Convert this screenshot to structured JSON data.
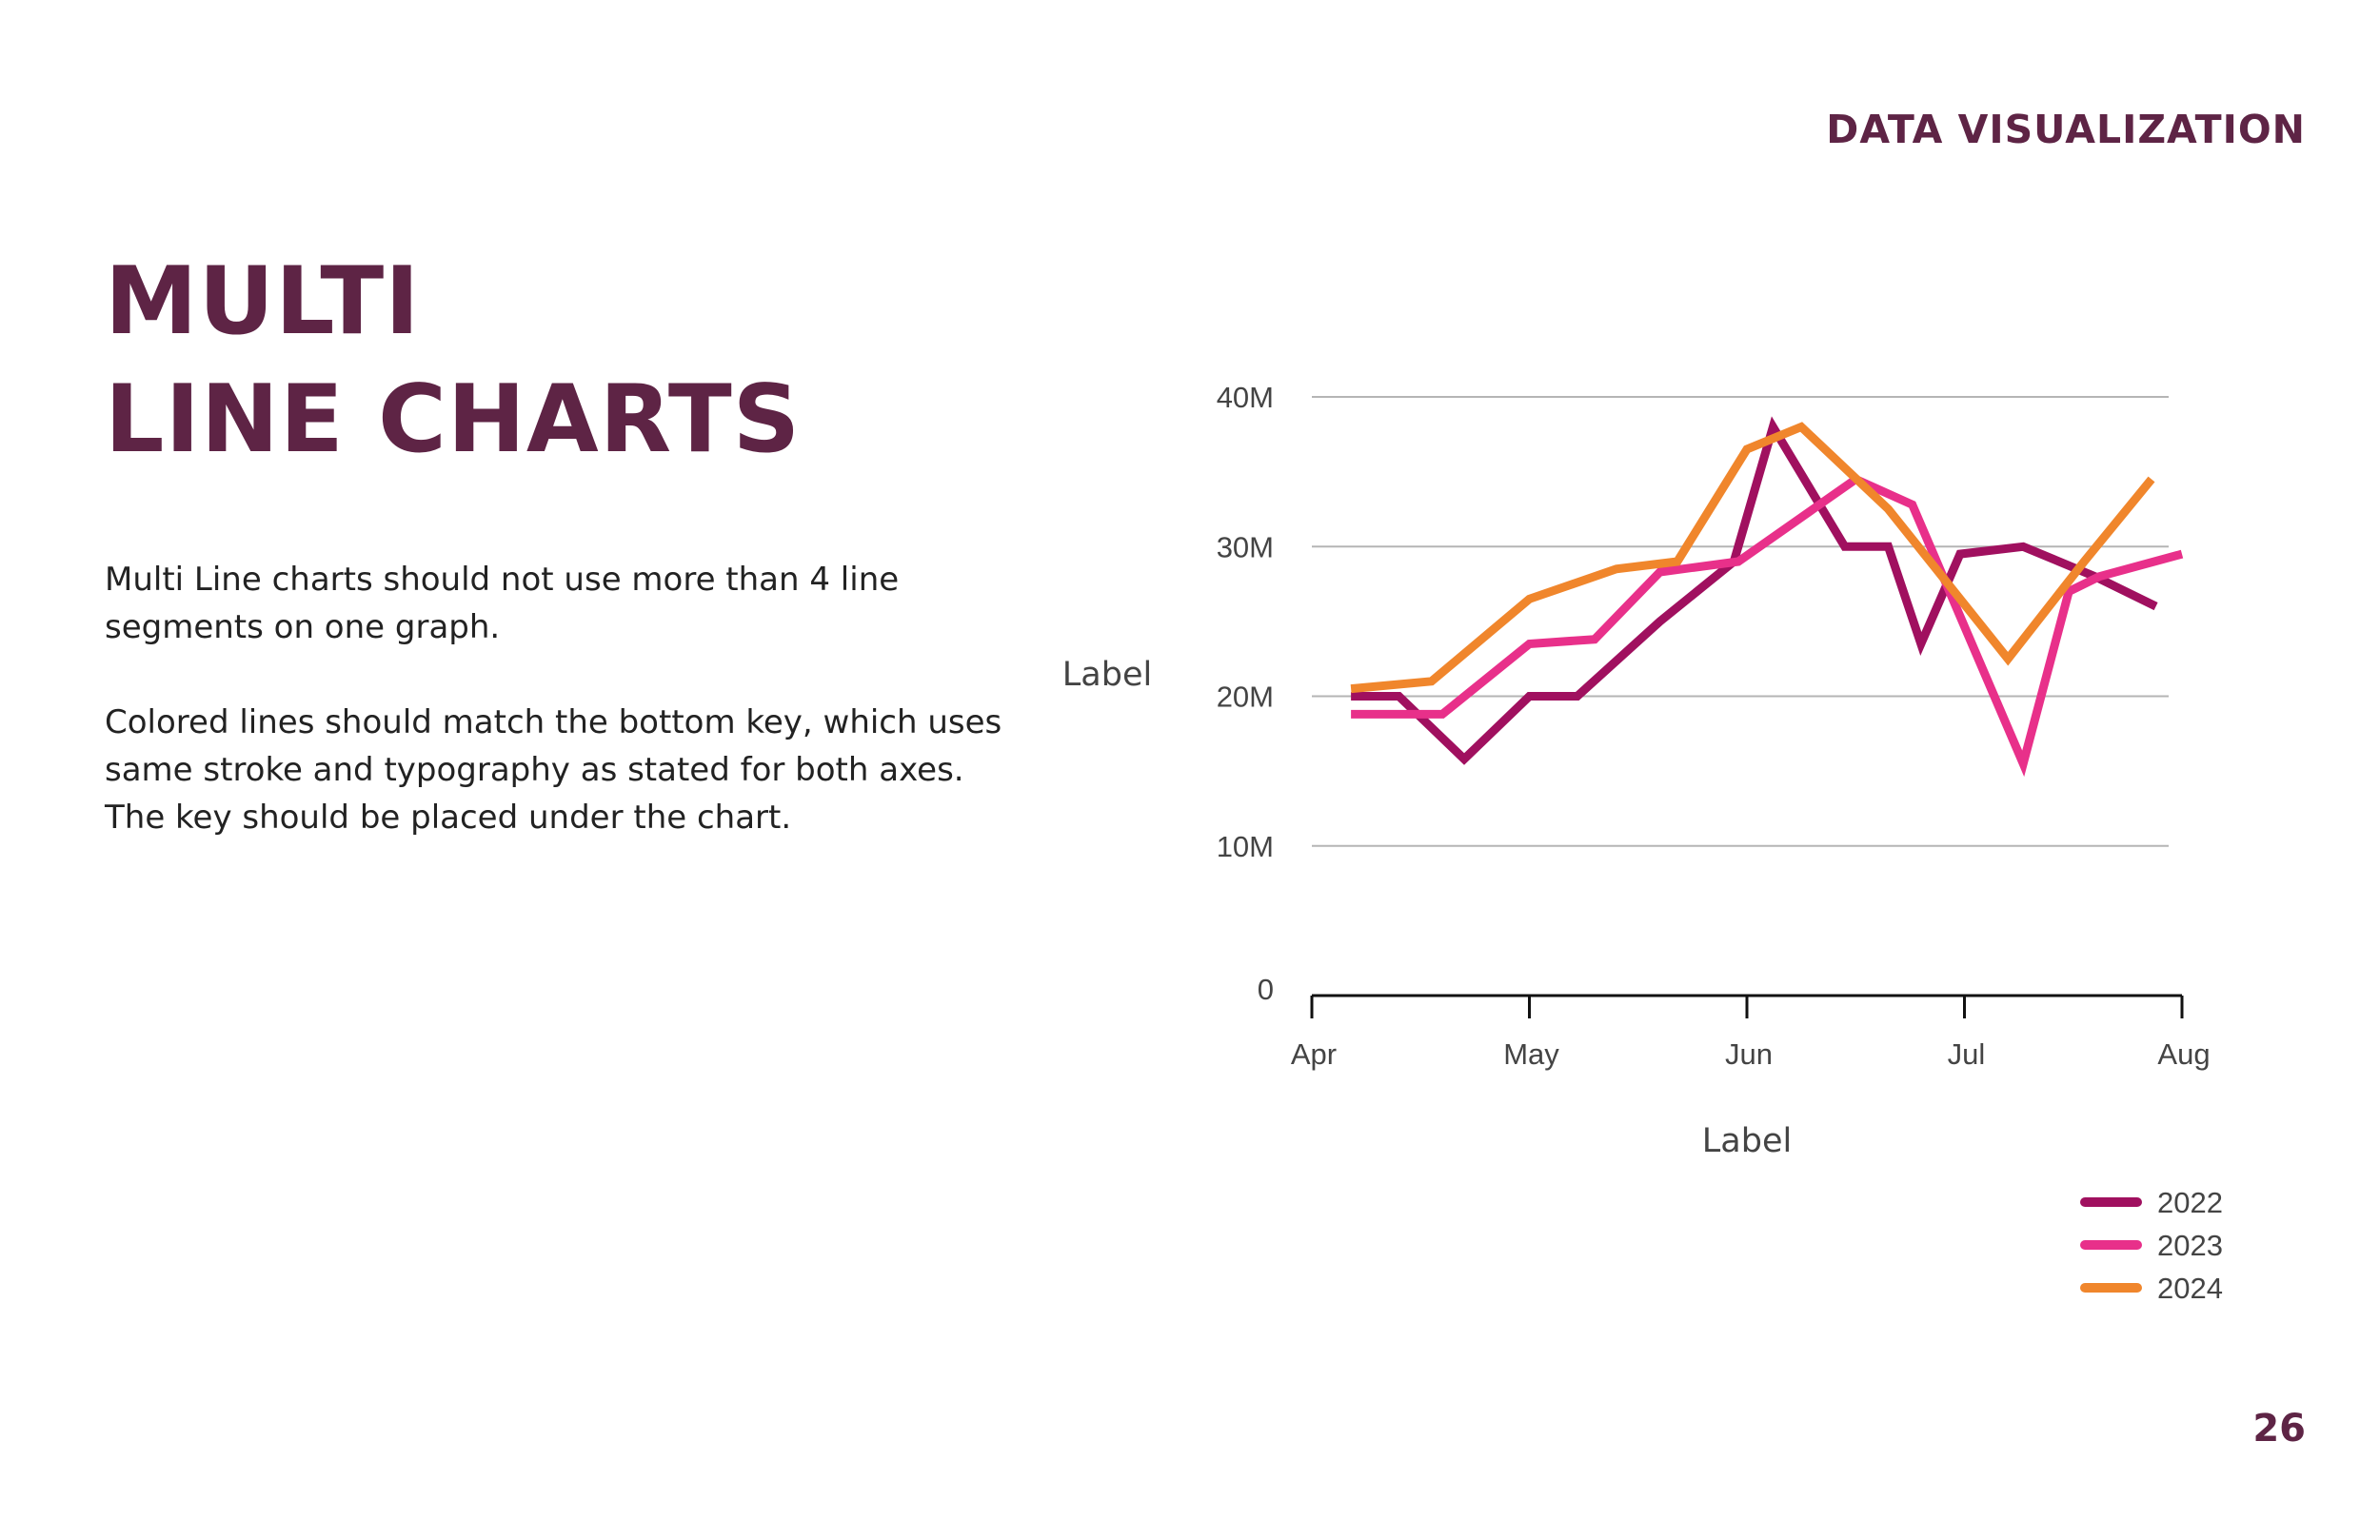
{
  "header": {
    "section": "DATA VISUALIZATION"
  },
  "title": {
    "line1": "MULTI",
    "line2": "LINE CHARTS"
  },
  "body": {
    "paragraph1": "Multi Line charts should not use more than 4 line segments on one graph.",
    "paragraph2": "Colored lines should match the bottom key, which uses same stroke and typography as stated for both axes. The key should be placed under the chart."
  },
  "footer": {
    "page_number": "26"
  },
  "chart_data": {
    "type": "line",
    "title": "",
    "xlabel": "Label",
    "ylabel": "Label",
    "x_ticks": [
      "Apr",
      "May",
      "Jun",
      "Jul",
      "Aug"
    ],
    "y_ticks": [
      "0",
      "10M",
      "20M",
      "30M",
      "40M"
    ],
    "y_tick_values": [
      0,
      10,
      20,
      30,
      40
    ],
    "ylim": [
      0,
      40
    ],
    "xlim": [
      0,
      4
    ],
    "grid": true,
    "legend_position": "bottom-right",
    "series": [
      {
        "name": "2022",
        "color": "#a0105f",
        "x": [
          0.18,
          0.4,
          0.7,
          1.0,
          1.22,
          1.6,
          1.94,
          2.12,
          2.45,
          2.65,
          2.8,
          2.98,
          3.27,
          3.6,
          3.88
        ],
        "y": [
          20.0,
          20.0,
          15.8,
          20.0,
          20.0,
          25.0,
          29.0,
          38.0,
          30.0,
          30.0,
          23.5,
          29.5,
          30.0,
          28.0,
          26.0
        ]
      },
      {
        "name": "2023",
        "color": "#e8308a",
        "x": [
          0.18,
          0.6,
          1.0,
          1.3,
          1.6,
          1.96,
          2.5,
          2.76,
          3.27,
          3.48,
          3.62,
          4.0
        ],
        "y": [
          18.8,
          18.8,
          23.5,
          23.8,
          28.3,
          29.0,
          34.5,
          32.8,
          15.5,
          27.0,
          28.0,
          29.5
        ]
      },
      {
        "name": "2024",
        "color": "#f0862c",
        "x": [
          0.18,
          0.55,
          1.0,
          1.4,
          1.68,
          2.0,
          2.25,
          2.65,
          3.2,
          3.55,
          3.86
        ],
        "y": [
          20.5,
          21.0,
          26.5,
          28.5,
          29.0,
          36.5,
          38.0,
          32.5,
          22.5,
          29.0,
          34.5
        ]
      }
    ]
  }
}
